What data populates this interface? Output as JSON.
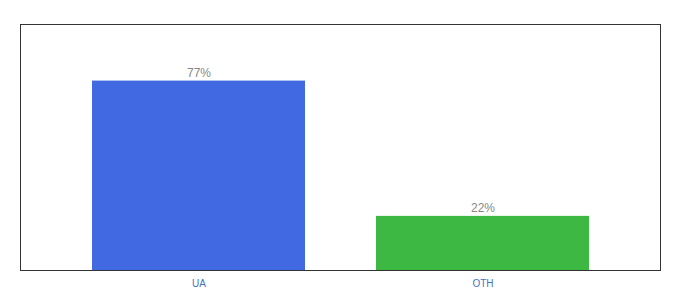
{
  "chart_data": {
    "type": "bar",
    "categories": [
      "UA",
      "OTH"
    ],
    "values": [
      77,
      22
    ],
    "value_labels": [
      "77%",
      "22%"
    ],
    "colors": [
      "#4169E1",
      "#3CB843"
    ],
    "data_labels": true,
    "ylim": [
      0,
      100
    ],
    "grid": false,
    "tick_labels": "x"
  }
}
